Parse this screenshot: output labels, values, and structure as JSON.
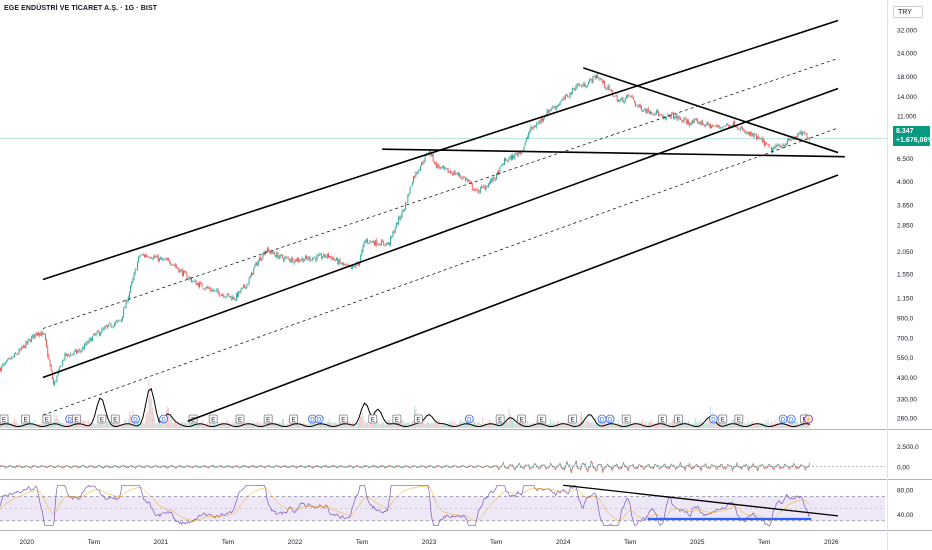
{
  "header": {
    "title": "EGE ENDÜSTRİ VE TİCARET A.Ş. · 1G · BIST",
    "currency": "TRY"
  },
  "price_tag": {
    "price": "8.347",
    "change": "+1.676,06%",
    "color": "#089981"
  },
  "colors": {
    "up": "#26a69a",
    "down": "#ef5350",
    "trendline": "#000000",
    "support_line": "#2962ff",
    "rsi_line": "#7e57c2",
    "rsi_band": "#ede7f6",
    "volume_ma": "#000000",
    "last_price_line": "#089981"
  },
  "icons": [
    "event-e-badge",
    "dividend-d-badge",
    "flash-badge"
  ],
  "chart_data": [
    {
      "type": "candlestick",
      "panel": "price",
      "scale": "log",
      "ylim": [
        230,
        40000
      ],
      "y_tick_labels": [
        "32.000",
        "24.000",
        "18.000",
        "14.000",
        "11.000",
        "8.347",
        "6.500",
        "4.900",
        "3.650",
        "2.850",
        "2.050",
        "1.550",
        "1.150",
        "900,0",
        "700,0",
        "550,0",
        "430,00",
        "330,00",
        "260,00"
      ],
      "y_ticks": [
        32000,
        24000,
        18000,
        14000,
        11000,
        8347,
        6500,
        4900,
        3650,
        2850,
        2050,
        1550,
        1150,
        900,
        700,
        550,
        430,
        330,
        260
      ],
      "x_tick_labels": [
        "2020",
        "Tem",
        "2021",
        "Tem",
        "2022",
        "Tem",
        "2023",
        "Tem",
        "2024",
        "Tem",
        "2025",
        "Tem",
        "2026"
      ],
      "x_ticks": [
        2020.0,
        2020.5,
        2021.0,
        2021.5,
        2022.0,
        2022.5,
        2023.0,
        2023.5,
        2024.0,
        2024.5,
        2025.0,
        2025.5,
        2026.0
      ],
      "xlim": [
        2019.8,
        2026.4
      ],
      "close_path": [
        [
          2019.8,
          480
        ],
        [
          2019.95,
          600
        ],
        [
          2020.08,
          760
        ],
        [
          2020.13,
          720
        ],
        [
          2020.2,
          390
        ],
        [
          2020.28,
          560
        ],
        [
          2020.4,
          600
        ],
        [
          2020.5,
          720
        ],
        [
          2020.62,
          820
        ],
        [
          2020.7,
          870
        ],
        [
          2020.78,
          1350
        ],
        [
          2020.84,
          1950
        ],
        [
          2020.92,
          1950
        ],
        [
          2021.0,
          1850
        ],
        [
          2021.08,
          1800
        ],
        [
          2021.15,
          1600
        ],
        [
          2021.25,
          1400
        ],
        [
          2021.4,
          1250
        ],
        [
          2021.55,
          1150
        ],
        [
          2021.65,
          1400
        ],
        [
          2021.7,
          1700
        ],
        [
          2021.78,
          2100
        ],
        [
          2021.9,
          1900
        ],
        [
          2022.0,
          1850
        ],
        [
          2022.15,
          1900
        ],
        [
          2022.25,
          1950
        ],
        [
          2022.35,
          1750
        ],
        [
          2022.42,
          1650
        ],
        [
          2022.48,
          1800
        ],
        [
          2022.52,
          2350
        ],
        [
          2022.6,
          2300
        ],
        [
          2022.7,
          2250
        ],
        [
          2022.75,
          2800
        ],
        [
          2022.82,
          3600
        ],
        [
          2022.88,
          5100
        ],
        [
          2022.95,
          6200
        ],
        [
          2023.0,
          7200
        ],
        [
          2023.05,
          6000
        ],
        [
          2023.12,
          5600
        ],
        [
          2023.2,
          5400
        ],
        [
          2023.28,
          5000
        ],
        [
          2023.35,
          4300
        ],
        [
          2023.42,
          4600
        ],
        [
          2023.5,
          5200
        ],
        [
          2023.56,
          6300
        ],
        [
          2023.62,
          6600
        ],
        [
          2023.7,
          7300
        ],
        [
          2023.75,
          9200
        ],
        [
          2023.82,
          10200
        ],
        [
          2023.9,
          12000
        ],
        [
          2023.95,
          12500
        ],
        [
          2024.0,
          13500
        ],
        [
          2024.05,
          14500
        ],
        [
          2024.1,
          16200
        ],
        [
          2024.15,
          16000
        ],
        [
          2024.2,
          17000
        ],
        [
          2024.25,
          18200
        ],
        [
          2024.3,
          16500
        ],
        [
          2024.35,
          15000
        ],
        [
          2024.42,
          13200
        ],
        [
          2024.5,
          14200
        ],
        [
          2024.55,
          12500
        ],
        [
          2024.62,
          11800
        ],
        [
          2024.7,
          11500
        ],
        [
          2024.75,
          10500
        ],
        [
          2024.8,
          11200
        ],
        [
          2024.88,
          10500
        ],
        [
          2024.95,
          10100
        ],
        [
          2025.0,
          10300
        ],
        [
          2025.08,
          9800
        ],
        [
          2025.15,
          9600
        ],
        [
          2025.22,
          9800
        ],
        [
          2025.28,
          10000
        ],
        [
          2025.35,
          9000
        ],
        [
          2025.42,
          8600
        ],
        [
          2025.5,
          7900
        ],
        [
          2025.55,
          7200
        ],
        [
          2025.6,
          7600
        ],
        [
          2025.65,
          7800
        ],
        [
          2025.72,
          8400
        ],
        [
          2025.78,
          8900
        ],
        [
          2025.82,
          8600
        ],
        [
          2025.84,
          8347
        ]
      ],
      "last_price": 8347,
      "drawings": [
        {
          "name": "upper-channel",
          "from": [
            2020.12,
            1450
          ],
          "to": [
            2026.05,
            36000
          ]
        },
        {
          "name": "upper-mid-dashed",
          "from": [
            2020.12,
            790
          ],
          "to": [
            2026.05,
            22500
          ],
          "dashed": true
        },
        {
          "name": "middle-channel",
          "from": [
            2020.12,
            430
          ],
          "to": [
            2026.05,
            15500
          ]
        },
        {
          "name": "lower-mid-dashed",
          "from": [
            2020.12,
            270
          ],
          "to": [
            2026.05,
            9500
          ],
          "dashed": true
        },
        {
          "name": "lower-channel",
          "from": [
            2021.2,
            250
          ],
          "to": [
            2026.05,
            5300
          ]
        },
        {
          "name": "horizontal-resistance",
          "from": [
            2022.65,
            7300
          ],
          "to": [
            2026.1,
            6650
          ]
        },
        {
          "name": "descending-trend",
          "from": [
            2024.15,
            20000
          ],
          "to": [
            2026.05,
            7000
          ]
        }
      ]
    },
    {
      "type": "bar",
      "panel": "volume",
      "series": [
        {
          "values_peaks": [
            [
              2020.22,
              0.25
            ],
            [
              2020.78,
              0.35
            ],
            [
              2020.92,
              1.0
            ],
            [
              2021.05,
              0.45
            ],
            [
              2022.5,
              0.3
            ],
            [
              2022.9,
              0.35
            ],
            [
              2023.6,
              0.3
            ],
            [
              2024.15,
              0.3
            ],
            [
              2025.1,
              0.25
            ],
            [
              2025.8,
              0.2
            ]
          ]
        }
      ],
      "moving_average_peaks": [
        [
          2020.55,
          0.55
        ],
        [
          2020.92,
          0.75
        ],
        [
          2021.05,
          0.25
        ],
        [
          2022.52,
          0.45
        ],
        [
          2022.62,
          0.35
        ],
        [
          2023.0,
          0.25
        ],
        [
          2023.6,
          0.15
        ],
        [
          2024.2,
          0.2
        ],
        [
          2025.1,
          0.15
        ]
      ],
      "event_badges": [
        {
          "x": 2019.83,
          "label": "E"
        },
        {
          "x": 2019.99,
          "label": "E"
        },
        {
          "x": 2020.15,
          "label": "E"
        },
        {
          "x": 2020.32,
          "label": "D"
        },
        {
          "x": 2020.37,
          "label": "E"
        },
        {
          "x": 2020.56,
          "label": "E"
        },
        {
          "x": 2020.66,
          "label": "E"
        },
        {
          "x": 2020.81,
          "label": "D"
        },
        {
          "x": 2021.02,
          "label": "D"
        },
        {
          "x": 2021.24,
          "label": "E"
        },
        {
          "x": 2021.39,
          "label": "E"
        },
        {
          "x": 2021.59,
          "label": "E"
        },
        {
          "x": 2021.8,
          "label": "E"
        },
        {
          "x": 2021.99,
          "label": "E"
        },
        {
          "x": 2022.13,
          "label": "D"
        },
        {
          "x": 2022.18,
          "label": "D"
        },
        {
          "x": 2022.36,
          "label": "E"
        },
        {
          "x": 2022.58,
          "label": "E"
        },
        {
          "x": 2022.76,
          "label": "E"
        },
        {
          "x": 2022.92,
          "label": "E"
        },
        {
          "x": 2023.3,
          "label": "D"
        },
        {
          "x": 2023.53,
          "label": "E"
        },
        {
          "x": 2023.69,
          "label": "E"
        },
        {
          "x": 2023.84,
          "label": "E"
        },
        {
          "x": 2024.07,
          "label": "E"
        },
        {
          "x": 2024.29,
          "label": "D"
        },
        {
          "x": 2024.35,
          "label": "D"
        },
        {
          "x": 2024.47,
          "label": "E"
        },
        {
          "x": 2024.74,
          "label": "E"
        },
        {
          "x": 2024.86,
          "label": "E"
        },
        {
          "x": 2025.12,
          "label": "D"
        },
        {
          "x": 2025.19,
          "label": "E"
        },
        {
          "x": 2025.31,
          "label": "E"
        },
        {
          "x": 2025.64,
          "label": "D"
        },
        {
          "x": 2025.7,
          "label": "D"
        },
        {
          "x": 2025.8,
          "label": "E"
        },
        {
          "x": 2025.83,
          "label": "⚡"
        }
      ]
    },
    {
      "type": "line",
      "panel": "oscillator",
      "y_tick_labels": [
        "2.500,0",
        "0,00"
      ],
      "y_ticks": [
        2500,
        0
      ],
      "ylim": [
        -1500,
        4500
      ]
    },
    {
      "type": "line",
      "panel": "rsi",
      "y_tick_labels": [
        "80,00",
        "40,00"
      ],
      "y_ticks": [
        80,
        40
      ],
      "band": [
        30,
        70
      ],
      "ylim": [
        15,
        95
      ],
      "drawings": [
        {
          "name": "rsi-descending-trend",
          "from": [
            2024.0,
            88
          ],
          "to": [
            2026.05,
            38
          ],
          "color": "#000000"
        },
        {
          "name": "rsi-support",
          "from": [
            2024.63,
            33
          ],
          "to": [
            2025.85,
            33
          ],
          "color": "#2962ff"
        }
      ]
    }
  ]
}
